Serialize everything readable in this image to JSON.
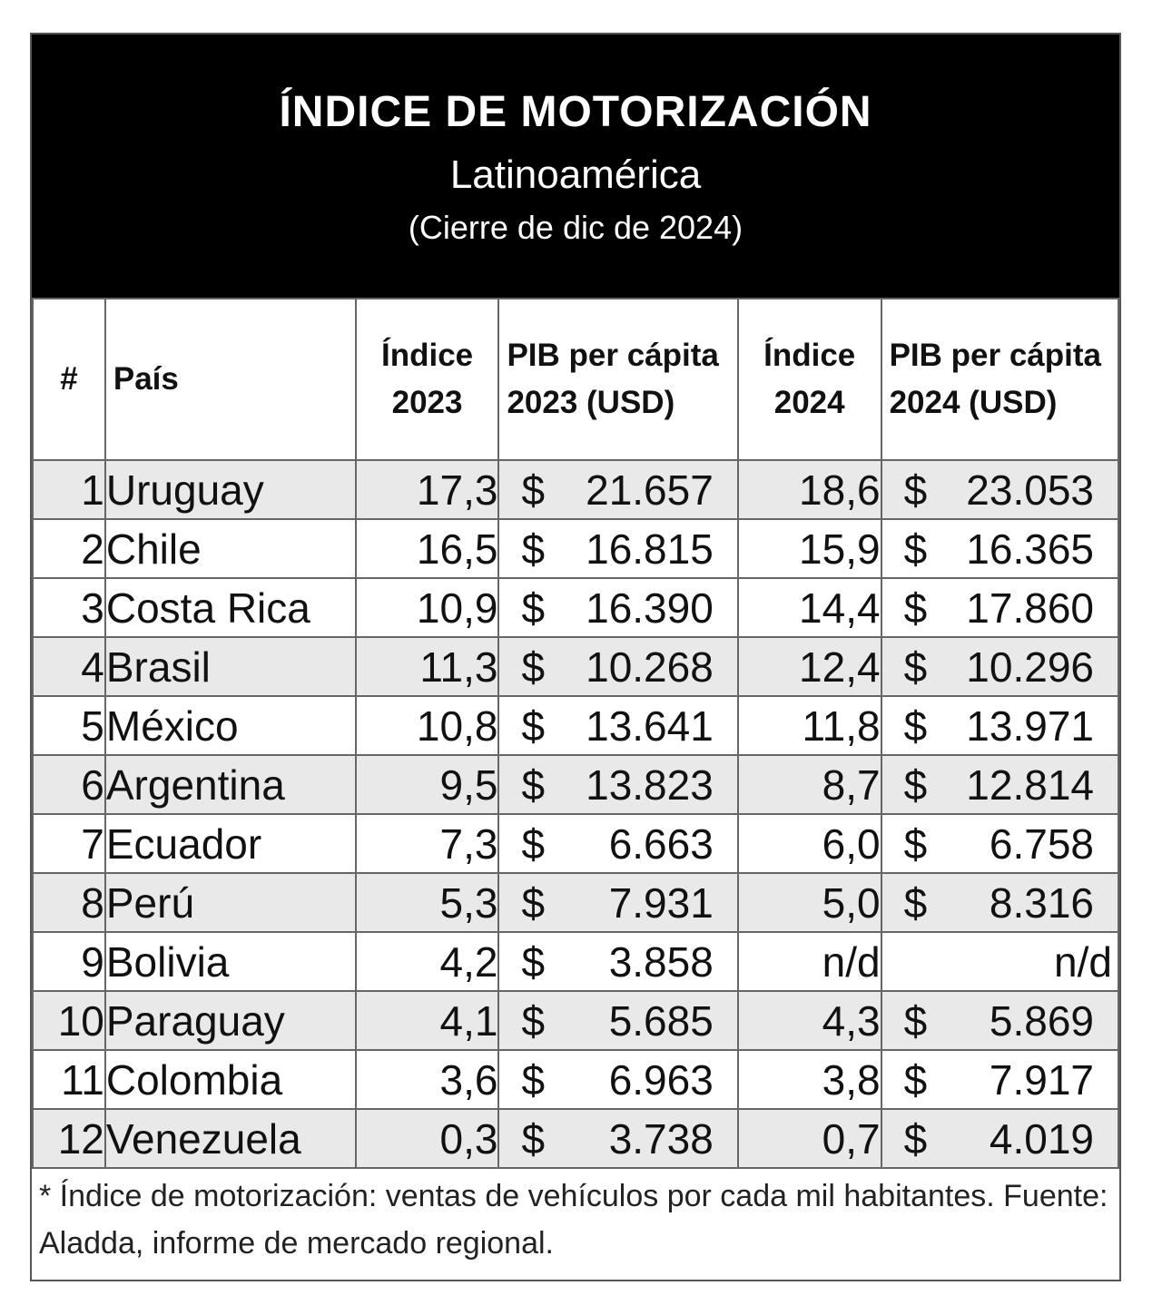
{
  "header": {
    "title": "ÍNDICE DE MOTORIZACIÓN",
    "subtitle": "Latinoamérica",
    "period": "(Cierre de dic de 2024)"
  },
  "chart_data": {
    "type": "table",
    "columns": [
      "#",
      "País",
      "Índice 2023",
      "PIB per cápita 2023 (USD)",
      "Índice 2024",
      "PIB per cápita 2024 (USD)"
    ],
    "currency_symbol": "$",
    "rows": [
      {
        "rank": "1",
        "country": "Uruguay",
        "idx2023": "17,3",
        "pib2023": "21.657",
        "idx2024": "18,6",
        "pib2024": "23.053"
      },
      {
        "rank": "2",
        "country": "Chile",
        "idx2023": "16,5",
        "pib2023": "16.815",
        "idx2024": "15,9",
        "pib2024": "16.365"
      },
      {
        "rank": "3",
        "country": "Costa Rica",
        "idx2023": "10,9",
        "pib2023": "16.390",
        "idx2024": "14,4",
        "pib2024": "17.860"
      },
      {
        "rank": "4",
        "country": "Brasil",
        "idx2023": "11,3",
        "pib2023": "10.268",
        "idx2024": "12,4",
        "pib2024": "10.296"
      },
      {
        "rank": "5",
        "country": "México",
        "idx2023": "10,8",
        "pib2023": "13.641",
        "idx2024": "11,8",
        "pib2024": "13.971"
      },
      {
        "rank": "6",
        "country": "Argentina",
        "idx2023": "9,5",
        "pib2023": "13.823",
        "idx2024": "8,7",
        "pib2024": "12.814"
      },
      {
        "rank": "7",
        "country": "Ecuador",
        "idx2023": "7,3",
        "pib2023": "6.663",
        "idx2024": "6,0",
        "pib2024": "6.758"
      },
      {
        "rank": "8",
        "country": "Perú",
        "idx2023": "5,3",
        "pib2023": "7.931",
        "idx2024": "5,0",
        "pib2024": "8.316"
      },
      {
        "rank": "9",
        "country": "Bolivia",
        "idx2023": "4,2",
        "pib2023": "3.858",
        "idx2024": "n/d",
        "pib2024": "n/d"
      },
      {
        "rank": "10",
        "country": "Paraguay",
        "idx2023": "4,1",
        "pib2023": "5.685",
        "idx2024": "4,3",
        "pib2024": "5.869"
      },
      {
        "rank": "11",
        "country": "Colombia",
        "idx2023": "3,6",
        "pib2023": "6.963",
        "idx2024": "3,8",
        "pib2024": "7.917"
      },
      {
        "rank": "12",
        "country": "Venezuela",
        "idx2023": "0,3",
        "pib2023": "3.738",
        "idx2024": "0,7",
        "pib2024": "4.019"
      }
    ],
    "shaded_rows": [
      1,
      4,
      6,
      8,
      10,
      12
    ]
  },
  "footnote": "* Índice de motorización: ventas de vehículos por cada mil habitantes. Fuente: Aladda, informe de mercado regional.",
  "colors": {
    "header_bg": "#000000",
    "shade": "#e9e9e9",
    "grid": "#666666"
  }
}
